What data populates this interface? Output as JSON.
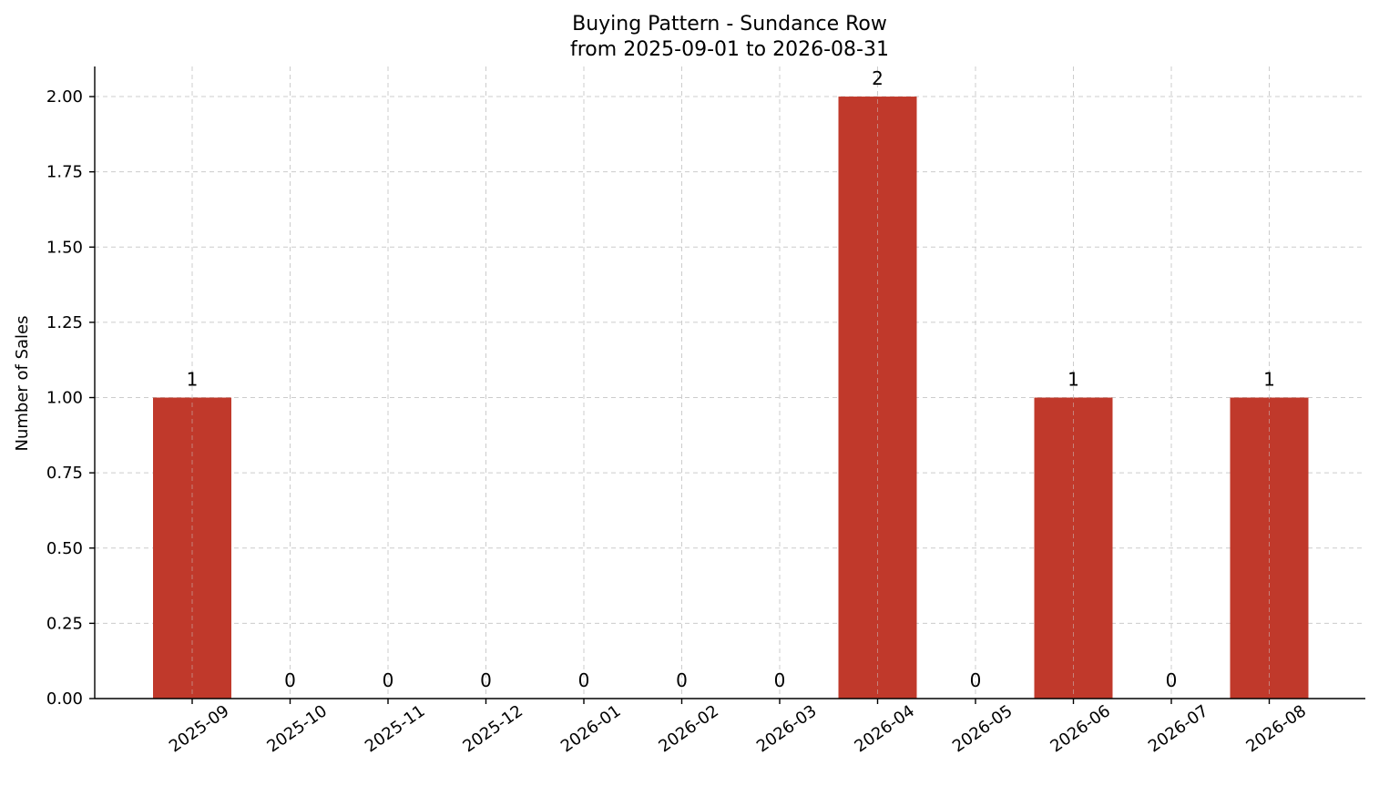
{
  "chart_data": {
    "type": "bar",
    "title": "Buying Pattern - Sundance Row",
    "subtitle": "from 2025-09-01 to 2026-08-31",
    "xlabel": "",
    "ylabel": "Number of Sales",
    "categories": [
      "2025-09",
      "2025-10",
      "2025-11",
      "2025-12",
      "2026-01",
      "2026-02",
      "2026-03",
      "2026-04",
      "2026-05",
      "2026-06",
      "2026-07",
      "2026-08"
    ],
    "values": [
      1,
      0,
      0,
      0,
      0,
      0,
      0,
      2,
      0,
      1,
      0,
      1
    ],
    "value_labels": [
      "1",
      "0",
      "0",
      "0",
      "0",
      "0",
      "0",
      "2",
      "0",
      "1",
      "0",
      "1"
    ],
    "ylim": [
      0,
      2.1
    ],
    "yticks": [
      0,
      0.25,
      0.5,
      0.75,
      1.0,
      1.25,
      1.5,
      1.75,
      2.0
    ],
    "ytick_labels": [
      "0.00",
      "0.25",
      "0.50",
      "0.75",
      "1.00",
      "1.25",
      "1.50",
      "1.75",
      "2.00"
    ],
    "grid": true,
    "legend": "none",
    "bar_color": "#c0392b"
  }
}
